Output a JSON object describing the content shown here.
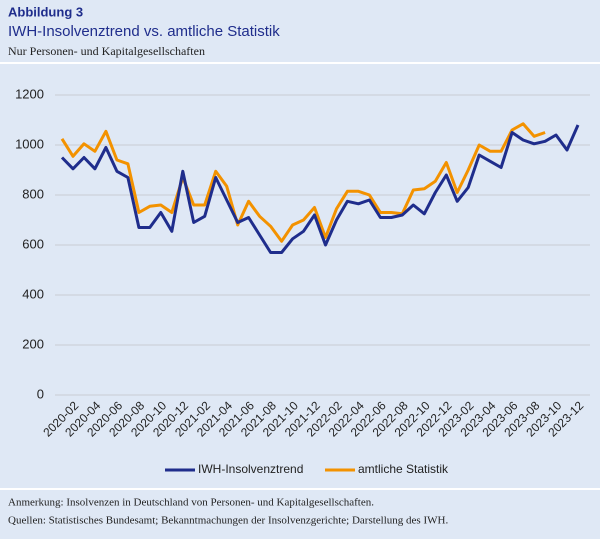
{
  "header": {
    "label": "Abbildung 3",
    "title": "IWH-Insolvenztrend vs. amtliche Statistik",
    "subtitle": "Nur Personen- und Kapitalgesellschaften"
  },
  "chart_data": {
    "type": "line",
    "categories": [
      null,
      "2020-02",
      null,
      "2020-04",
      null,
      "2020-06",
      null,
      "2020-08",
      null,
      "2020-10",
      null,
      "2020-12",
      null,
      "2021-02",
      null,
      "2021-04",
      null,
      "2021-06",
      null,
      "2021-08",
      null,
      "2021-10",
      null,
      "2021-12",
      null,
      "2022-02",
      null,
      "2022-04",
      null,
      "2022-06",
      null,
      "2022-08",
      null,
      "2022-10",
      null,
      "2022-12",
      null,
      "2023-02",
      null,
      "2023-04",
      null,
      "2023-06",
      null,
      "2023-08",
      null,
      "2023-10",
      null,
      "2023-12"
    ],
    "series": [
      {
        "name": "IWH-Insolvenztrend",
        "color": "#1f2d8c",
        "values": [
          950,
          905,
          950,
          905,
          990,
          895,
          870,
          670,
          670,
          730,
          655,
          895,
          690,
          715,
          870,
          780,
          690,
          710,
          640,
          570,
          570,
          625,
          655,
          720,
          600,
          700,
          775,
          765,
          780,
          710,
          710,
          720,
          760,
          725,
          810,
          880,
          775,
          830,
          960,
          935,
          910,
          1050,
          1020,
          1005,
          1015,
          1040,
          980,
          1080
        ]
      },
      {
        "name": "amtliche Statistik",
        "color": "#f39200",
        "values": [
          1025,
          955,
          1005,
          975,
          1055,
          940,
          925,
          730,
          755,
          760,
          730,
          870,
          760,
          760,
          895,
          835,
          680,
          775,
          715,
          675,
          615,
          680,
          700,
          750,
          630,
          745,
          815,
          815,
          800,
          730,
          730,
          725,
          820,
          825,
          855,
          930,
          810,
          900,
          1000,
          975,
          975,
          1060,
          1085,
          1035,
          1050,
          null,
          null,
          null
        ]
      }
    ],
    "ylim": [
      0,
      1200
    ],
    "yticks": [
      0,
      200,
      400,
      600,
      800,
      1000,
      1200
    ],
    "grid": true
  },
  "notes": [
    "Anmerkung: Insolvenzen in Deutschland von Personen- und Kapitalgesellschaften.",
    "Quellen: Statistisches Bundesamt; Bekanntmachungen der Insolvenzgerichte; Darstellung des IWH."
  ]
}
